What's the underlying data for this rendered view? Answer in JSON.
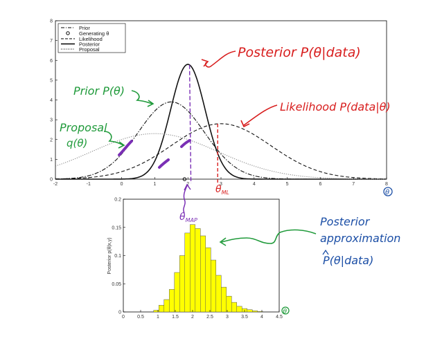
{
  "chart_data": [
    {
      "type": "line",
      "xlim": [
        -2,
        8
      ],
      "ylim": [
        0,
        8
      ],
      "x_ticks": [
        "-2",
        "-1",
        "0",
        "1",
        "2",
        "3",
        "4",
        "5",
        "6",
        "7",
        "8"
      ],
      "y_ticks": [
        "0",
        "1",
        "2",
        "3",
        "4",
        "5",
        "6",
        "7",
        "8"
      ],
      "legend_position": "top-left",
      "legend": [
        "Prior",
        "Generating θ",
        "Likelihood",
        "Posterior",
        "Proposal"
      ],
      "series": [
        {
          "name": "Prior",
          "style": "dash-dot",
          "peak_x": 1.5,
          "peak_y": 3.9,
          "sd": 1.0
        },
        {
          "name": "Likelihood",
          "style": "dashed",
          "peak_x": 3.0,
          "peak_y": 2.8,
          "sd": 1.5
        },
        {
          "name": "Posterior",
          "style": "solid",
          "peak_x": 2.0,
          "peak_y": 5.8,
          "sd": 0.52
        },
        {
          "name": "Proposal",
          "style": "dotted",
          "peak_x": 1.0,
          "peak_y": 2.3,
          "sd": 1.9
        }
      ],
      "generating_theta": 1.9,
      "map_x": 2.05,
      "ml_x": 2.9,
      "grid": false
    },
    {
      "type": "bar",
      "xlim": [
        0,
        4.5
      ],
      "ylim": [
        0,
        0.2
      ],
      "ylabel": "Posterior p(θ|x,y)",
      "x_ticks": [
        "0",
        "0.5",
        "1",
        "1.5",
        "2",
        "2.5",
        "3",
        "3.5",
        "4",
        "4.5"
      ],
      "y_ticks": [
        "0",
        "0.05",
        "0.1",
        "0.15",
        "0.2"
      ],
      "bar_width": 0.15,
      "bar_color": "#ffff00",
      "bars": [
        {
          "x": 0.95,
          "y": 0.003
        },
        {
          "x": 1.1,
          "y": 0.012
        },
        {
          "x": 1.25,
          "y": 0.022
        },
        {
          "x": 1.4,
          "y": 0.04
        },
        {
          "x": 1.55,
          "y": 0.07
        },
        {
          "x": 1.7,
          "y": 0.1
        },
        {
          "x": 1.85,
          "y": 0.14
        },
        {
          "x": 2.0,
          "y": 0.155
        },
        {
          "x": 2.15,
          "y": 0.148
        },
        {
          "x": 2.3,
          "y": 0.135
        },
        {
          "x": 2.45,
          "y": 0.114
        },
        {
          "x": 2.6,
          "y": 0.092
        },
        {
          "x": 2.75,
          "y": 0.065
        },
        {
          "x": 2.9,
          "y": 0.044
        },
        {
          "x": 3.05,
          "y": 0.028
        },
        {
          "x": 3.2,
          "y": 0.017
        },
        {
          "x": 3.35,
          "y": 0.01
        },
        {
          "x": 3.5,
          "y": 0.006
        },
        {
          "x": 3.65,
          "y": 0.004
        },
        {
          "x": 3.8,
          "y": 0.002
        },
        {
          "x": 3.95,
          "y": 0.001
        }
      ]
    }
  ],
  "annotations": {
    "posterior": "Posterior P(θ|data)",
    "prior": "Prior P(θ)",
    "likelihood": "Likelihood P(data|θ)",
    "proposal_line1": "Proposal",
    "proposal_line2": "q(θ)",
    "theta_ml": "θ",
    "theta_ml_sub": "ML",
    "theta_map": "θ",
    "theta_map_sub": "MAP",
    "theta_axis_top": "θ",
    "theta_axis_bottom": "θ",
    "approx_line1": "Posterior",
    "approx_line2": "approximation",
    "approx_line3": "P(θ|data)"
  },
  "colors": {
    "red": "#d81e1e",
    "green": "#1f9a3a",
    "purple": "#7a2fb5",
    "blue": "#1c4fa6",
    "bar": "#ffff00"
  }
}
